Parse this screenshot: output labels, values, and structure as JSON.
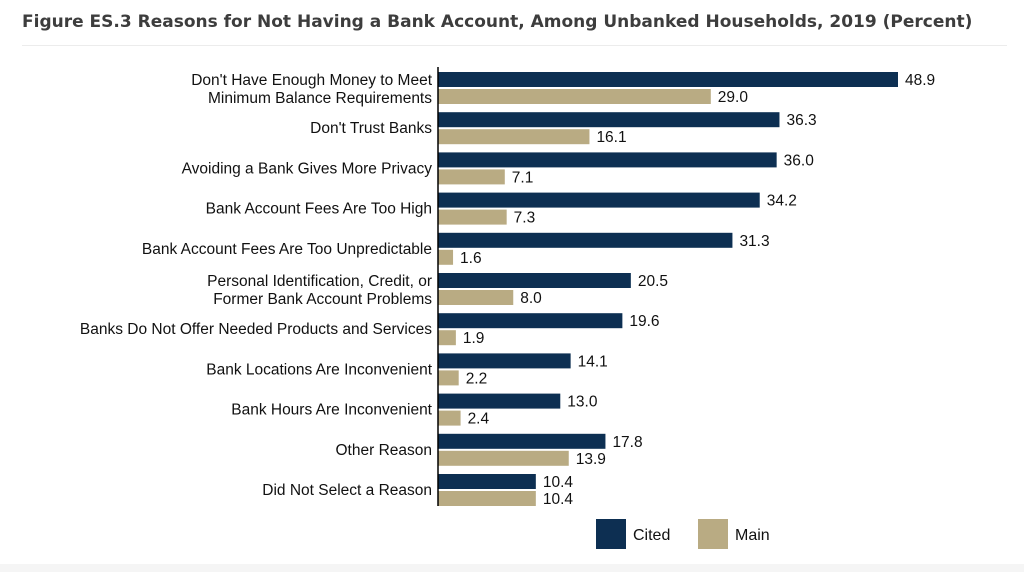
{
  "title": "Figure ES.3 Reasons for Not Having a Bank Account, Among Unbanked Households, 2019 (Percent)",
  "colors": {
    "cited": "#0d2f52",
    "main": "#b9ab83"
  },
  "chart_data": {
    "type": "bar",
    "orientation": "horizontal",
    "title": "Figure ES.3 Reasons for Not Having a Bank Account, Among Unbanked Households, 2019 (Percent)",
    "categories": [
      [
        "Don't Have Enough Money to Meet",
        "Minimum Balance Requirements"
      ],
      [
        "Don't Trust Banks"
      ],
      [
        "Avoiding a Bank Gives More Privacy"
      ],
      [
        "Bank Account Fees Are Too High"
      ],
      [
        "Bank Account Fees Are Too Unpredictable"
      ],
      [
        "Personal Identification, Credit, or",
        "Former Bank Account Problems"
      ],
      [
        "Banks Do Not Offer Needed Products and Services"
      ],
      [
        "Bank Locations Are Inconvenient"
      ],
      [
        "Bank Hours Are Inconvenient"
      ],
      [
        "Other Reason"
      ],
      [
        "Did Not Select a Reason"
      ]
    ],
    "series": [
      {
        "name": "Cited",
        "values": [
          "48.9",
          "36.3",
          "36.0",
          "34.2",
          "31.3",
          "20.5",
          "19.6",
          "14.1",
          "13.0",
          "17.8",
          "10.4"
        ]
      },
      {
        "name": "Main",
        "values": [
          "29.0",
          "16.1",
          "7.1",
          "7.3",
          "1.6",
          "8.0",
          "1.9",
          "2.2",
          "2.4",
          "13.9",
          "10.4"
        ]
      }
    ],
    "xlim": [
      0,
      50
    ],
    "grid": false,
    "legend": "bottom"
  }
}
